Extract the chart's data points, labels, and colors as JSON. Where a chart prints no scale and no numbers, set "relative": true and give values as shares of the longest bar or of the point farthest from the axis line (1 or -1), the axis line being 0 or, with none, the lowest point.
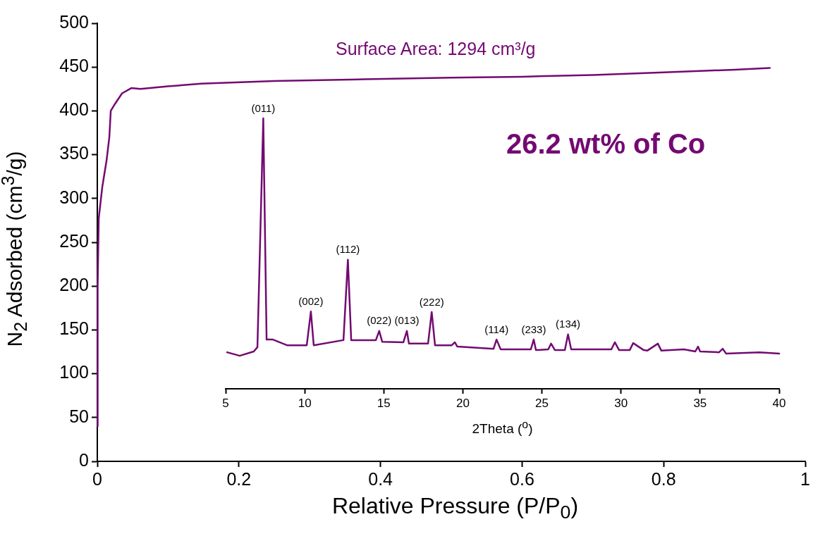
{
  "chart_data": [
    {
      "type": "line",
      "xlabel": "Relative Pressure (P/P$_{0}$)",
      "ylabel": "N$_{2}$ Adsorbed (cm$^{3}$/g)",
      "annotations": [
        "Surface Area: 1294 cm³/g",
        "26.2 wt% of Co"
      ],
      "x": [
        0,
        0.0005,
        0.002,
        0.007,
        0.013,
        0.017,
        0.019,
        0.025,
        0.035,
        0.048,
        0.061,
        0.1,
        0.147,
        0.25,
        0.377,
        0.5,
        0.6,
        0.7,
        0.8,
        0.9,
        0.95
      ],
      "series": [
        {
          "color": "#730a72",
          "values": [
            40,
            200,
            277,
            313,
            343,
            370,
            400,
            408,
            420,
            426,
            425,
            428,
            431,
            434,
            436,
            438,
            439,
            441,
            444,
            447,
            449
          ]
        }
      ],
      "xlim": [
        0,
        1
      ],
      "xticks": [
        0,
        0.2,
        0.4,
        0.6,
        0.8,
        1
      ],
      "ylim": [
        0,
        500
      ],
      "yticks": [
        0,
        50,
        100,
        150,
        200,
        250,
        300,
        350,
        400,
        450,
        500
      ],
      "grid": false,
      "legend": false,
      "marker": "none",
      "line_style": "solid"
    },
    {
      "type": "line",
      "relative": true,
      "xlabel": "2Theta ($^{o}$)",
      "x": [
        5.09,
        5.89,
        6.78,
        7.01,
        7.38,
        7.59,
        7.99,
        8.88,
        10.13,
        10.39,
        10.57,
        12.45,
        12.73,
        12.94,
        14.5,
        14.71,
        14.9,
        16.24,
        16.46,
        16.59,
        17.8,
        18.03,
        18.24,
        19.3,
        19.49,
        19.65,
        21.94,
        22.13,
        22.39,
        24.3,
        24.48,
        24.62,
        25.4,
        25.58,
        25.82,
        26.45,
        26.65,
        26.85,
        29.39,
        29.61,
        29.88,
        30.55,
        30.77,
        31.44,
        31.66,
        32.33,
        32.55,
        33.98,
        34.7,
        34.87,
        35.0,
        36.2,
        36.43,
        36.65,
        38.75,
        40
      ],
      "series": [
        {
          "color": "#730a72",
          "values": [
            0.135,
            0.122,
            0.138,
            0.154,
            1.0,
            0.182,
            0.182,
            0.161,
            0.161,
            0.286,
            0.161,
            0.18,
            0.477,
            0.18,
            0.18,
            0.214,
            0.174,
            0.172,
            0.214,
            0.167,
            0.167,
            0.284,
            0.161,
            0.161,
            0.172,
            0.156,
            0.148,
            0.182,
            0.146,
            0.146,
            0.182,
            0.143,
            0.146,
            0.167,
            0.143,
            0.143,
            0.201,
            0.146,
            0.146,
            0.172,
            0.143,
            0.143,
            0.169,
            0.143,
            0.141,
            0.167,
            0.141,
            0.146,
            0.138,
            0.156,
            0.138,
            0.135,
            0.148,
            0.13,
            0.135,
            0.13
          ]
        }
      ],
      "xlim": [
        5,
        40
      ],
      "xticks": [
        5,
        10,
        15,
        20,
        25,
        30,
        35,
        40
      ],
      "annotations": [
        {
          "text": "(011)",
          "x": 7.38,
          "y": 1.0
        },
        {
          "text": "(002)",
          "x": 10.39,
          "y": 0.286
        },
        {
          "text": "(112)",
          "x": 12.73,
          "y": 0.477
        },
        {
          "text": "(022)",
          "x": 14.71,
          "y": 0.214
        },
        {
          "text": "(013)",
          "x": 16.46,
          "y": 0.214
        },
        {
          "text": "(222)",
          "x": 18.03,
          "y": 0.284
        },
        {
          "text": "(114)",
          "x": 22.13,
          "y": 0.182
        },
        {
          "text": "(233)",
          "x": 24.48,
          "y": 0.182
        },
        {
          "text": "(134)",
          "x": 26.65,
          "y": 0.201
        }
      ],
      "grid": false,
      "legend": false,
      "marker": "none",
      "line_style": "solid"
    }
  ]
}
